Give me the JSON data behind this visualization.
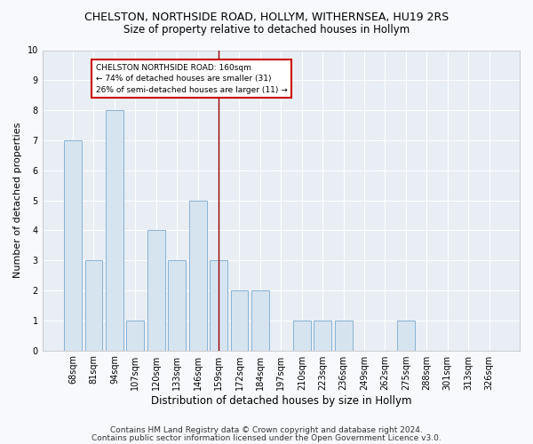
{
  "title": "CHELSTON, NORTHSIDE ROAD, HOLLYM, WITHERNSEA, HU19 2RS",
  "subtitle": "Size of property relative to detached houses in Hollym",
  "xlabel": "Distribution of detached houses by size in Hollym",
  "ylabel": "Number of detached properties",
  "categories": [
    "68sqm",
    "81sqm",
    "94sqm",
    "107sqm",
    "120sqm",
    "133sqm",
    "146sqm",
    "159sqm",
    "172sqm",
    "184sqm",
    "197sqm",
    "210sqm",
    "223sqm",
    "236sqm",
    "249sqm",
    "262sqm",
    "275sqm",
    "288sqm",
    "301sqm",
    "313sqm",
    "326sqm"
  ],
  "values": [
    7,
    3,
    8,
    1,
    4,
    3,
    5,
    3,
    2,
    2,
    0,
    1,
    1,
    1,
    0,
    0,
    1,
    0,
    0,
    0,
    0
  ],
  "bar_color": "#d6e4f0",
  "bar_edge_color": "#7aaace",
  "highlight_index": 7,
  "highlight_line_color": "#990000",
  "ylim": [
    0,
    10
  ],
  "yticks": [
    0,
    1,
    2,
    3,
    4,
    5,
    6,
    7,
    8,
    9,
    10
  ],
  "annotation_title": "CHELSTON NORTHSIDE ROAD: 160sqm",
  "annotation_line1": "← 74% of detached houses are smaller (31)",
  "annotation_line2": "26% of semi-detached houses are larger (11) →",
  "annotation_box_color": "#ffffff",
  "annotation_box_edge": "#cc0000",
  "footer1": "Contains HM Land Registry data © Crown copyright and database right 2024.",
  "footer2": "Contains public sector information licensed under the Open Government Licence v3.0.",
  "bg_color": "#f7f9fc",
  "plot_bg_color": "#e8eef4",
  "grid_color": "#ffffff",
  "title_fontsize": 9,
  "subtitle_fontsize": 8.5,
  "axis_label_fontsize": 8,
  "tick_fontsize": 7,
  "footer_fontsize": 6.5
}
